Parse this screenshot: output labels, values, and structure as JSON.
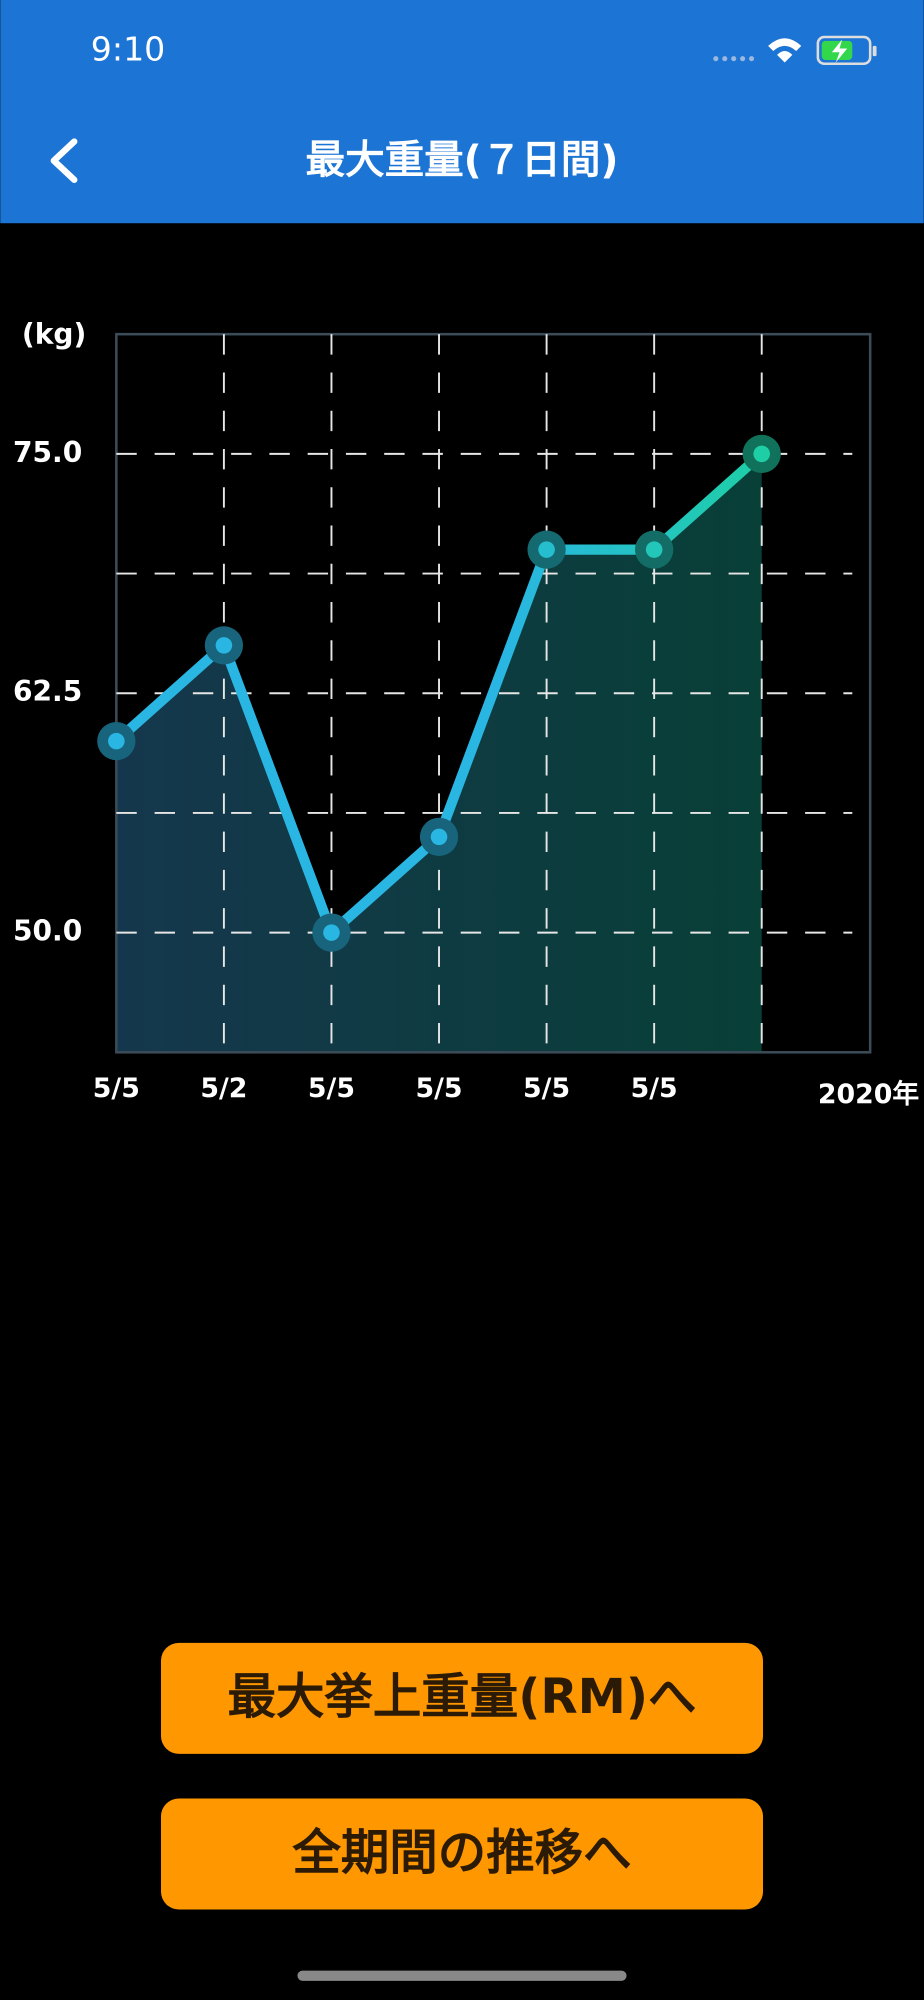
{
  "status_bar": {
    "time": "9:10"
  },
  "nav": {
    "title": "最大重量(７日間)"
  },
  "chart_data": {
    "type": "line",
    "y_label": "(kg)",
    "x_note": "2020年",
    "categories": [
      "5/5",
      "5/2",
      "5/5",
      "5/5",
      "5/5",
      "5/5",
      null
    ],
    "values": [
      60,
      65,
      50,
      55,
      70,
      70,
      75
    ],
    "colors": [
      "#29b6e2",
      "#1ecfa6"
    ],
    "ylim": [
      43.75,
      81.25
    ],
    "yticks": [
      {
        "value": 50,
        "label": "50.0"
      },
      {
        "value": 62.5,
        "label": "62.5"
      },
      {
        "value": 75,
        "label": "75.0"
      }
    ],
    "ygrid": [
      50,
      56.25,
      62.5,
      68.75,
      75
    ],
    "grid": true
  },
  "buttons": [
    "最大挙上重量(RM)へ",
    "全期間の推移へ"
  ]
}
